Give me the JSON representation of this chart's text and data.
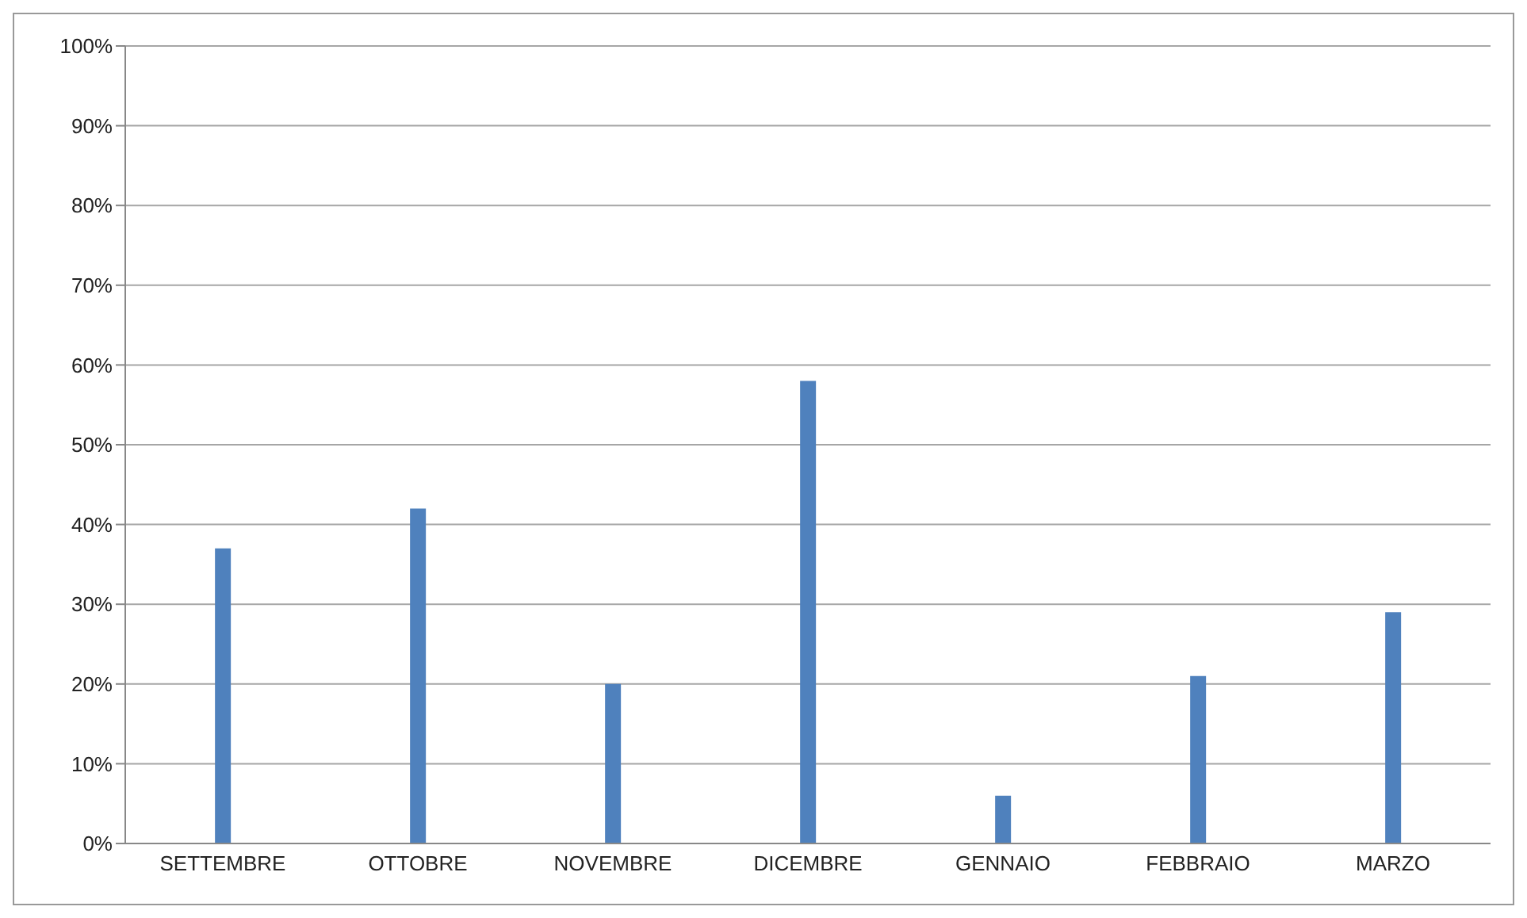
{
  "chart_data": {
    "type": "bar",
    "categories": [
      "SETTEMBRE",
      "OTTOBRE",
      "NOVEMBRE",
      "DICEMBRE",
      "GENNAIO",
      "FEBBRAIO",
      "MARZO"
    ],
    "values": [
      37,
      42,
      20,
      58,
      6,
      21,
      29
    ],
    "color": "#4f81bd",
    "ylim": [
      0,
      100
    ],
    "yticks": [
      {
        "value": 0,
        "label": "0%"
      },
      {
        "value": 10,
        "label": "10%"
      },
      {
        "value": 20,
        "label": "20%"
      },
      {
        "value": 30,
        "label": "30%"
      },
      {
        "value": 40,
        "label": "40%"
      },
      {
        "value": 50,
        "label": "50%"
      },
      {
        "value": 60,
        "label": "60%"
      },
      {
        "value": 70,
        "label": "70%"
      },
      {
        "value": 80,
        "label": "80%"
      },
      {
        "value": 90,
        "label": "90%"
      },
      {
        "value": 100,
        "label": "100%"
      }
    ],
    "grid": "y",
    "legend": false
  }
}
